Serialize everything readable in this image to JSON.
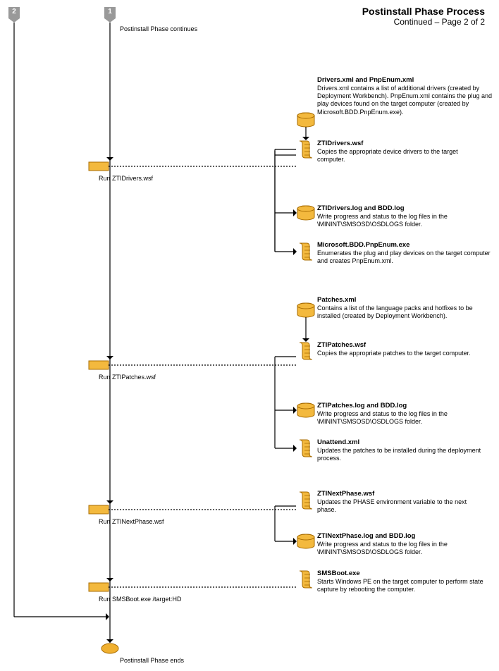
{
  "header": {
    "title": "Postinstall Phase Process",
    "subtitle": "Continued – Page 2 of 2"
  },
  "markers": {
    "m1": "1",
    "m2": "2"
  },
  "topLabel": "Postinstall Phase continues",
  "endLabel": "Postinstall Phase ends",
  "steps": {
    "s1": "Run ZTIDrivers.wsf",
    "s2": "Run ZTIPatches.wsf",
    "s3": "Run ZTINextPhase.wsf",
    "s4": "Run SMSBoot.exe /target:HD"
  },
  "items": {
    "driversXml": {
      "title": "Drivers.xml and PnpEnum.xml",
      "body": "Drivers.xml contains a list of additional drivers (created by Deployment Workbench). PnpEnum.xml contains the plug and play devices found on the target computer (created by Microsoft.BDD.PnpEnum.exe)."
    },
    "ztiDrivers": {
      "title": "ZTIDrivers.wsf",
      "body": "Copies the appropriate device drivers to the target computer."
    },
    "ztiDrvLog": {
      "title": "ZTIDrivers.log and BDD.log",
      "body": "Write progress and status to the log files in the \\MININT\\SMSOSD\\OSDLOGS folder."
    },
    "pnpEnumExe": {
      "title": "Microsoft.BDD.PnpEnum.exe",
      "body": "Enumerates the plug and play devices on the target computer and creates PnpEnum.xml."
    },
    "patchesXml": {
      "title": "Patches.xml",
      "body": "Contains a list of the language packs and hotfixes to be installed (created by Deployment Workbench)."
    },
    "ztiPatches": {
      "title": "ZTIPatches.wsf",
      "body": "Copies the appropriate patches to the target computer."
    },
    "ztiPatchLog": {
      "title": "ZTIPatches.log and BDD.log",
      "body": "Write progress and status to the log files in the \\MININT\\SMSOSD\\OSDLOGS folder."
    },
    "unattend": {
      "title": "Unattend.xml",
      "body": "Updates the patches to be installed during the deployment process."
    },
    "ztiNext": {
      "title": "ZTINextPhase.wsf",
      "body": "Updates the PHASE environment variable to the next phase."
    },
    "ztiNextLog": {
      "title": "ZTINextPhase.log and BDD.log",
      "body": "Write progress and status to the log files in the \\MININT\\SMSOSD\\OSDLOGS folder."
    },
    "smsBoot": {
      "title": "SMSBoot.exe",
      "body": "Starts Windows PE on the target computer to perform state capture by rebooting the computer."
    }
  },
  "style": {
    "stepFill": "#f3b93e",
    "stepStroke": "#a86c00",
    "dbFill": "#f3b93e",
    "dbStroke": "#a86c00",
    "scrollFill": "#f3b93e",
    "scrollStroke": "#a86c00",
    "terminatorFill": "#f0b030",
    "lineColor": "#000000",
    "dashColor": "#000000"
  },
  "layout": {
    "mainX": 156,
    "leftReturnX": 20,
    "iconX": 420,
    "descX": 450,
    "descW": 250,
    "stepBoxX": 126,
    "stepBoxW": 28,
    "stepBoxH": 12,
    "arrowSize": 5
  }
}
